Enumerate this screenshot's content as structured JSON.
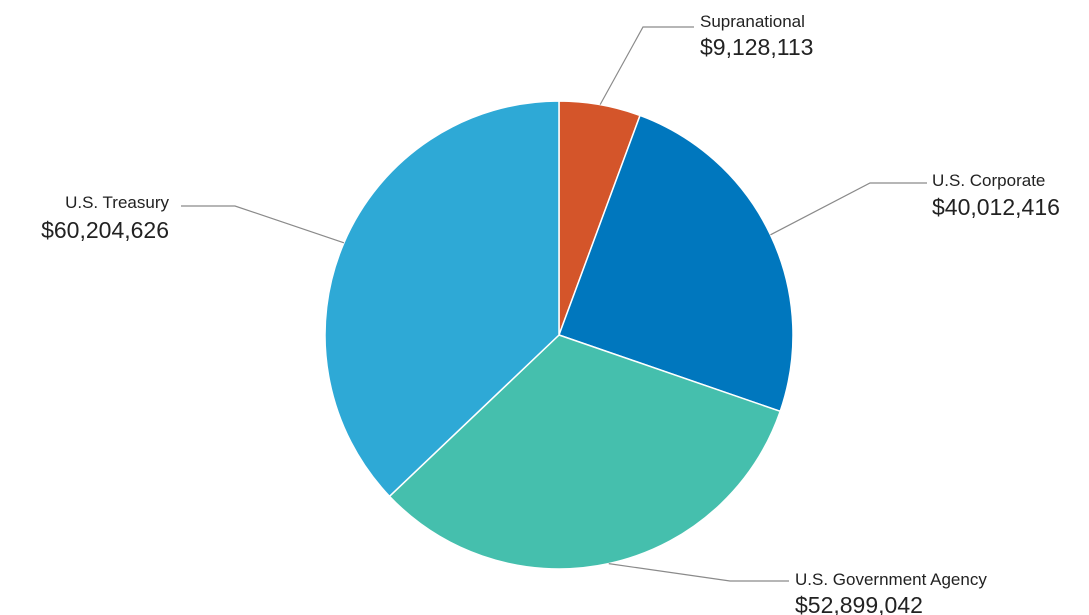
{
  "chart_data": {
    "type": "pie",
    "title": "",
    "slices": [
      {
        "label": "Supranational",
        "value": 9128113,
        "value_label": "$9,128,113",
        "color": "#D4552A"
      },
      {
        "label": "U.S. Corporate",
        "value": 40012416,
        "value_label": "$40,012,416",
        "color": "#0077BE"
      },
      {
        "label": "U.S. Government Agency",
        "value": 52899042,
        "value_label": "$52,899,042",
        "color": "#45BFAD"
      },
      {
        "label": "U.S. Treasury",
        "value": 60204626,
        "value_label": "$60,204,626",
        "color": "#2EA9D6"
      }
    ],
    "start_angle_deg": 0,
    "direction": "clockwise",
    "legend": "none",
    "leader_color": "#8A8A8A"
  }
}
